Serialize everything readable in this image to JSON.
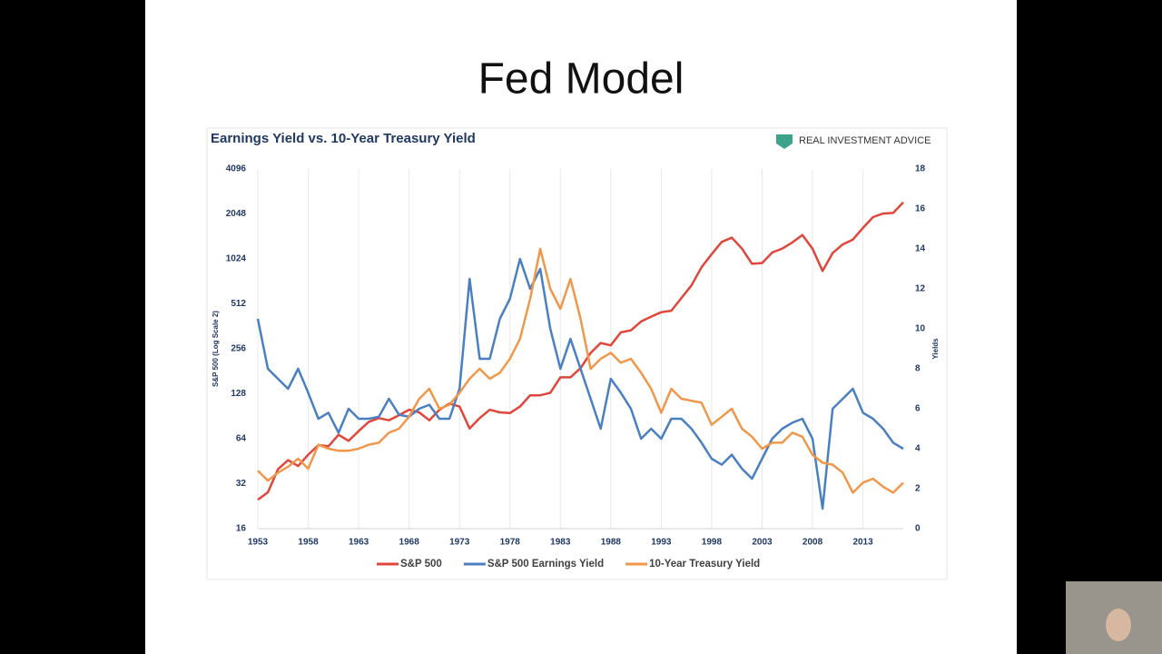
{
  "slide_title": "Fed Model",
  "chart_data": {
    "type": "line",
    "title": "Earnings Yield vs. 10-Year Treasury Yield",
    "brand": "REAL INVESTMENT ADVICE",
    "y_label": "S&P 500 (Log Scale 2)",
    "y2_label": "Yields",
    "log_base": 2,
    "grid": "x",
    "legend": "bottom",
    "xlim": [
      1953,
      2017
    ],
    "xticks": [
      1953,
      1958,
      1963,
      1968,
      1973,
      1978,
      1983,
      1988,
      1993,
      1998,
      2003,
      2008,
      2013
    ],
    "ylim": [
      16,
      4096
    ],
    "yticks": [
      16,
      32,
      64,
      128,
      256,
      512,
      1024,
      2048,
      4096
    ],
    "y2lim": [
      0,
      18
    ],
    "y2ticks": [
      0,
      2,
      4,
      6,
      8,
      10,
      12,
      14,
      16,
      18
    ],
    "x": [
      1953,
      1954,
      1955,
      1956,
      1957,
      1958,
      1959,
      1960,
      1961,
      1962,
      1963,
      1964,
      1965,
      1966,
      1967,
      1968,
      1969,
      1970,
      1971,
      1972,
      1973,
      1974,
      1975,
      1976,
      1977,
      1978,
      1979,
      1980,
      1981,
      1982,
      1983,
      1984,
      1985,
      1986,
      1987,
      1988,
      1989,
      1990,
      1991,
      1992,
      1993,
      1994,
      1995,
      1996,
      1997,
      1998,
      1999,
      2000,
      2001,
      2002,
      2003,
      2004,
      2005,
      2006,
      2007,
      2008,
      2009,
      2010,
      2011,
      2012,
      2013,
      2014,
      2015,
      2016,
      2017
    ],
    "series": [
      {
        "name": "S&P 500",
        "color": "#e0463b",
        "values": [
          25,
          28,
          40,
          46,
          42,
          50,
          58,
          57,
          68,
          62,
          72,
          83,
          88,
          85,
          92,
          100,
          96,
          85,
          100,
          110,
          105,
          75,
          88,
          100,
          96,
          95,
          105,
          125,
          125,
          130,
          165,
          165,
          190,
          240,
          280,
          270,
          330,
          340,
          390,
          420,
          450,
          460,
          560,
          680,
          900,
          1100,
          1330,
          1420,
          1200,
          950,
          960,
          1130,
          1200,
          1320,
          1480,
          1200,
          850,
          1120,
          1280,
          1380,
          1650,
          1950,
          2060,
          2080,
          2450
        ]
      },
      {
        "name": "S&P 500 Earnings Yield",
        "color": "#4a7fc1",
        "axis": "y2",
        "values": [
          10.5,
          8,
          7.5,
          7,
          8,
          6.8,
          5.5,
          5.8,
          4.8,
          6,
          5.5,
          5.5,
          5.6,
          6.5,
          5.7,
          5.6,
          6,
          6.2,
          5.5,
          5.5,
          7,
          12.5,
          8.5,
          8.5,
          10.5,
          11.5,
          13.5,
          12,
          13,
          10,
          8,
          9.5,
          8,
          6.5,
          5,
          7.5,
          6.8,
          6,
          4.5,
          5,
          4.5,
          5.5,
          5.5,
          5,
          4.3,
          3.5,
          3.2,
          3.7,
          3,
          2.5,
          3.5,
          4.5,
          5,
          5.3,
          5.5,
          4.5,
          1,
          6,
          6.5,
          7,
          5.8,
          5.5,
          5,
          4.3,
          4
        ]
      },
      {
        "name": "10-Year Treasury Yield",
        "color": "#f0974a",
        "axis": "y2",
        "values": [
          2.9,
          2.4,
          2.8,
          3.1,
          3.5,
          3,
          4.2,
          4,
          3.9,
          3.9,
          4,
          4.2,
          4.3,
          4.8,
          5,
          5.6,
          6.5,
          7,
          6,
          6.2,
          6.8,
          7.5,
          8,
          7.5,
          7.8,
          8.5,
          9.5,
          11.5,
          14,
          12,
          11,
          12.5,
          10.5,
          8,
          8.5,
          8.8,
          8.3,
          8.5,
          7.8,
          7,
          5.8,
          7,
          6.5,
          6.4,
          6.3,
          5.2,
          5.6,
          6,
          5,
          4.6,
          4,
          4.3,
          4.3,
          4.8,
          4.6,
          3.7,
          3.3,
          3.2,
          2.8,
          1.8,
          2.3,
          2.5,
          2.1,
          1.8,
          2.3
        ]
      }
    ]
  }
}
